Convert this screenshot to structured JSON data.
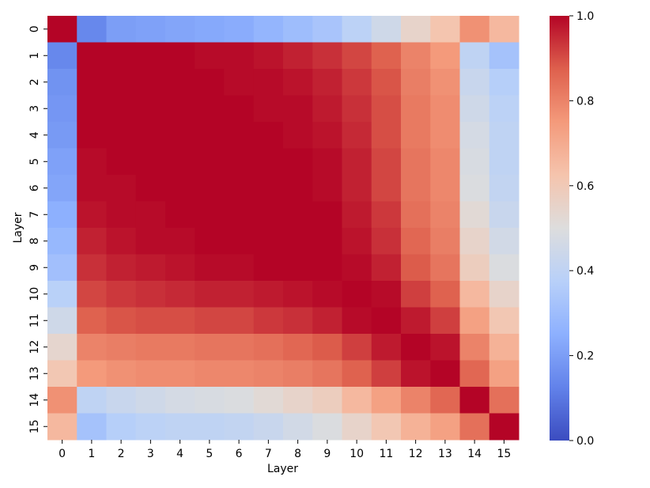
{
  "chart_data": {
    "type": "heatmap",
    "title": "",
    "xlabel": "Layer",
    "ylabel": "Layer",
    "x_categories": [
      "0",
      "1",
      "2",
      "3",
      "4",
      "5",
      "6",
      "7",
      "8",
      "9",
      "10",
      "11",
      "12",
      "13",
      "14",
      "15"
    ],
    "y_categories": [
      "0",
      "1",
      "2",
      "3",
      "4",
      "5",
      "6",
      "7",
      "8",
      "9",
      "10",
      "11",
      "12",
      "13",
      "14",
      "15"
    ],
    "colormap": "coolwarm",
    "vmin": 0.0,
    "vmax": 1.0,
    "colorbar_ticks": [
      "0.0",
      "0.2",
      "0.4",
      "0.6",
      "0.8",
      "1.0"
    ],
    "values": [
      [
        1.0,
        0.14,
        0.2,
        0.21,
        0.22,
        0.23,
        0.24,
        0.27,
        0.3,
        0.33,
        0.39,
        0.45,
        0.55,
        0.62,
        0.77,
        0.66
      ],
      [
        0.14,
        1.0,
        1.0,
        1.0,
        1.0,
        0.99,
        0.99,
        0.98,
        0.96,
        0.94,
        0.91,
        0.87,
        0.8,
        0.75,
        0.4,
        0.32
      ],
      [
        0.17,
        1.0,
        1.0,
        1.0,
        1.0,
        1.0,
        0.99,
        0.99,
        0.98,
        0.96,
        0.93,
        0.89,
        0.81,
        0.77,
        0.43,
        0.37
      ],
      [
        0.18,
        1.0,
        1.0,
        1.0,
        1.0,
        1.0,
        1.0,
        0.99,
        0.99,
        0.97,
        0.94,
        0.9,
        0.82,
        0.78,
        0.45,
        0.39
      ],
      [
        0.19,
        1.0,
        1.0,
        1.0,
        1.0,
        1.0,
        1.0,
        1.0,
        0.99,
        0.98,
        0.95,
        0.9,
        0.82,
        0.78,
        0.47,
        0.4
      ],
      [
        0.21,
        0.99,
        1.0,
        1.0,
        1.0,
        1.0,
        1.0,
        1.0,
        1.0,
        0.99,
        0.96,
        0.91,
        0.83,
        0.79,
        0.48,
        0.4
      ],
      [
        0.22,
        0.99,
        0.99,
        1.0,
        1.0,
        1.0,
        1.0,
        1.0,
        1.0,
        0.99,
        0.96,
        0.91,
        0.83,
        0.79,
        0.49,
        0.41
      ],
      [
        0.25,
        0.98,
        0.99,
        0.99,
        1.0,
        1.0,
        1.0,
        1.0,
        1.0,
        1.0,
        0.97,
        0.93,
        0.84,
        0.8,
        0.52,
        0.43
      ],
      [
        0.28,
        0.96,
        0.98,
        0.99,
        0.99,
        1.0,
        1.0,
        1.0,
        1.0,
        1.0,
        0.98,
        0.94,
        0.86,
        0.81,
        0.55,
        0.46
      ],
      [
        0.31,
        0.94,
        0.96,
        0.97,
        0.98,
        0.99,
        0.99,
        1.0,
        1.0,
        1.0,
        0.99,
        0.96,
        0.88,
        0.83,
        0.58,
        0.49
      ],
      [
        0.38,
        0.91,
        0.93,
        0.94,
        0.95,
        0.96,
        0.96,
        0.97,
        0.98,
        0.99,
        1.0,
        0.99,
        0.92,
        0.87,
        0.66,
        0.55
      ],
      [
        0.45,
        0.87,
        0.89,
        0.9,
        0.9,
        0.91,
        0.91,
        0.93,
        0.94,
        0.96,
        0.99,
        1.0,
        0.97,
        0.92,
        0.73,
        0.61
      ],
      [
        0.54,
        0.8,
        0.81,
        0.82,
        0.82,
        0.83,
        0.83,
        0.84,
        0.86,
        0.88,
        0.92,
        0.97,
        1.0,
        0.98,
        0.8,
        0.68
      ],
      [
        0.61,
        0.75,
        0.77,
        0.78,
        0.78,
        0.79,
        0.79,
        0.8,
        0.81,
        0.83,
        0.87,
        0.92,
        0.98,
        1.0,
        0.86,
        0.73
      ],
      [
        0.77,
        0.4,
        0.43,
        0.45,
        0.47,
        0.48,
        0.49,
        0.52,
        0.55,
        0.58,
        0.66,
        0.73,
        0.8,
        0.86,
        1.0,
        0.84
      ],
      [
        0.66,
        0.32,
        0.37,
        0.39,
        0.4,
        0.4,
        0.41,
        0.43,
        0.46,
        0.49,
        0.55,
        0.61,
        0.68,
        0.73,
        0.84,
        1.0
      ]
    ]
  }
}
